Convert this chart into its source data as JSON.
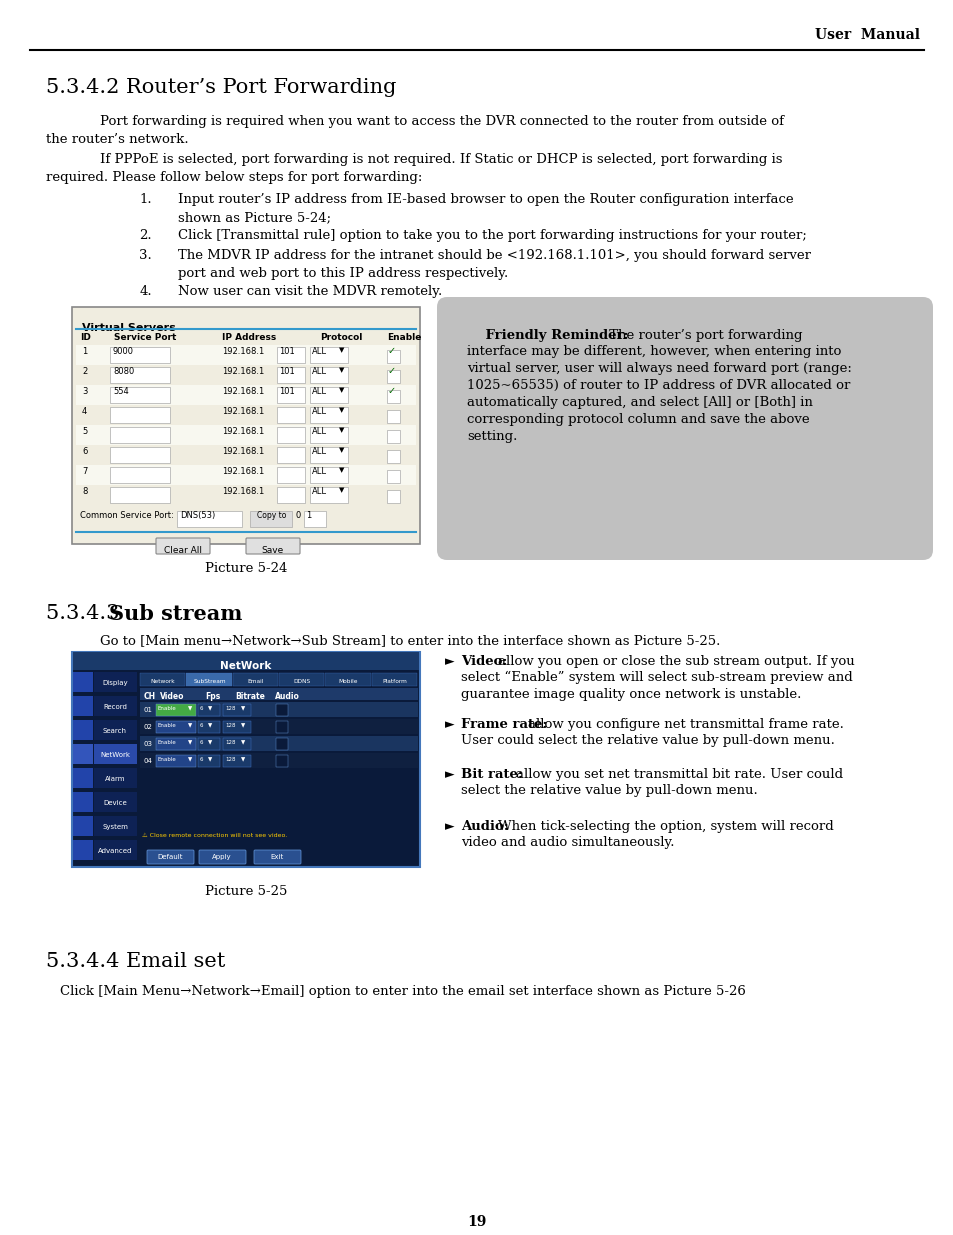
{
  "page_title": "User  Manual",
  "page_number": "19",
  "section_342_title": "5.3.4.2 Router’s Port Forwarding",
  "para1_line1": "Port forwarding is required when you want to access the DVR connected to the router from outside of",
  "para1_line2": "the router’s network.",
  "para2_line1": "If PPPoE is selected, port forwarding is not required. If Static or DHCP is selected, port forwarding is",
  "para2_line2": "required. Please follow below steps for port forwarding:",
  "list1_line1": "Input router’s IP address from IE-based browser to open the Router configuration interface",
  "list1_line2": "shown as Picture 5-24;",
  "list2": "Click [Transmittal rule] option to take you to the port forwarding instructions for your router;",
  "list3_line1": "The MDVR IP address for the intranet should be <192.168.1.101>, you should forward server",
  "list3_line2": "port and web port to this IP address respectively.",
  "list4": "Now user can visit the MDVR remotely.",
  "pic524_caption": "Picture 5-24",
  "friendly_title": "Friendly Reminder:",
  "friendly_body": "The router’s port forwarding\ninterface may be different, however, when entering into\nvirtual server, user will always need forward port (range:\n1025~65535) of router to IP address of DVR allocated or\nautomatically captured, and select [All] or [Both] in\ncorresponding protocol column and save the above\nsetting.",
  "section_343_normal": "5.3.4.3 ",
  "section_343_bold": "Sub stream",
  "para_343": "Go to [Main menu→Network→Sub Stream] to enter into the interface shown as Picture 5-25.",
  "bv_bold": "Video:",
  "bv_text": " allow you open or close the sub stream output. If you select “Enable” system will select sub-stream preview and guarantee image quality once network is unstable.",
  "bf_bold": "Frame rate:",
  "bf_text": " allow you configure net transmittal frame rate. User could select the relative value by pull-down menu.",
  "bb_bold": "Bit rate:",
  "bb_text": " allow you set net transmittal bit rate. User could select the relative value by pull-down menu.",
  "ba_bold": "Audio:",
  "ba_text": " When tick-selecting the option, system will record video and audio simultaneously.",
  "pic525_caption": "Picture 5-25",
  "section_344_title": "5.3.4.4 Email set",
  "para_344": "Click [Main Menu→Network→Email] option to enter into the email set interface shown as Picture 5-26",
  "bg_color": "#ffffff",
  "text_color": "#000000"
}
